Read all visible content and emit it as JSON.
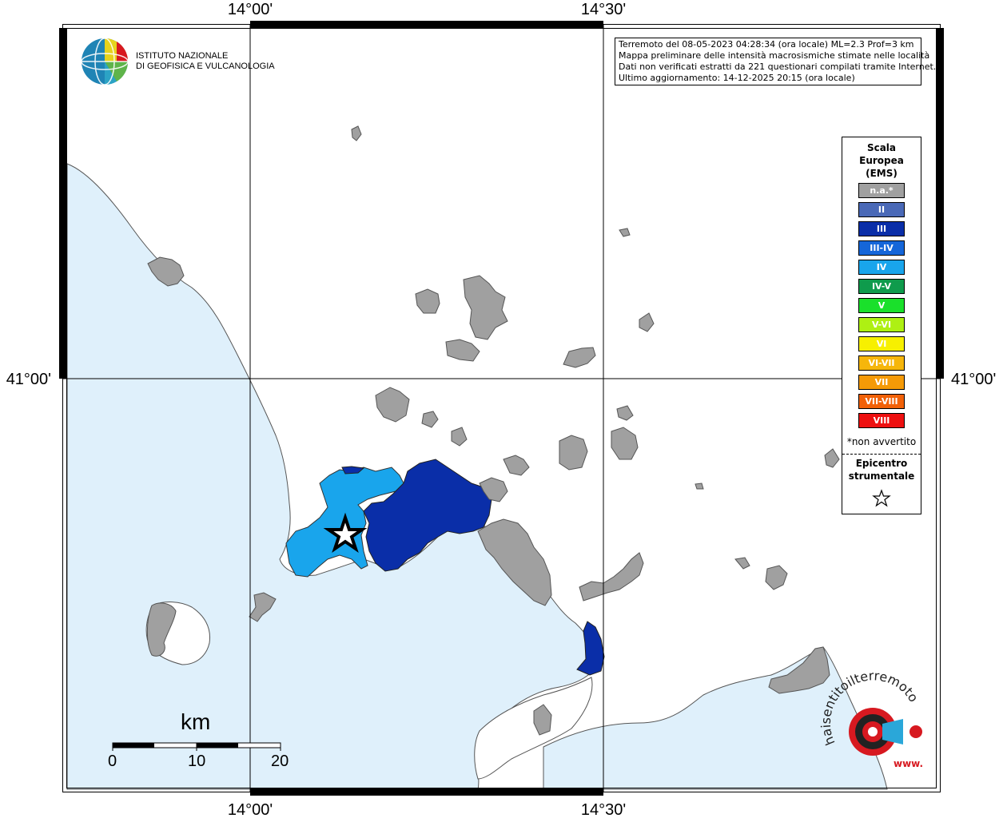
{
  "map": {
    "top_labels": [
      "14°00'",
      "14°30'"
    ],
    "bottom_labels": [
      "14°00'",
      "14°30'"
    ],
    "left_label": "41°00'",
    "right_label": "41°00'"
  },
  "logo": {
    "line1": "ISTITUTO NAZIONALE",
    "line2": "DI GEOFISICA E VULCANOLOGIA"
  },
  "info": {
    "line1": "Terremoto del 08-05-2023 04:28:34 (ora locale) ML=2.3 Prof=3 km",
    "line2": "Mappa preliminare delle intensità macrosismiche stimate nelle località",
    "line3": "Dati non verificati estratti da 221 questionari compilati tramite Internet.",
    "line4": "Ultimo aggiornamento: 14-12-2025 20:15 (ora locale)"
  },
  "legend": {
    "title": "Scala Europea (EMS)",
    "items": [
      {
        "label": "n.a.*",
        "color": "#a0a0a0"
      },
      {
        "label": "II",
        "color": "#4a69b7"
      },
      {
        "label": "III",
        "color": "#0a2ea8"
      },
      {
        "label": "III-IV",
        "color": "#1566d9"
      },
      {
        "label": "IV",
        "color": "#19a5ec"
      },
      {
        "label": "IV-V",
        "color": "#0f9b4c"
      },
      {
        "label": "V",
        "color": "#1ae02b"
      },
      {
        "label": "V-VI",
        "color": "#aef013"
      },
      {
        "label": "VI",
        "color": "#f7f000"
      },
      {
        "label": "VI-VII",
        "color": "#f6b60b"
      },
      {
        "label": "VII",
        "color": "#f59a07"
      },
      {
        "label": "VII-VIII",
        "color": "#f26108"
      },
      {
        "label": "VIII",
        "color": "#ee1010"
      }
    ],
    "note": "*non avvertito",
    "epicenter_label": "Epicentro strumentale"
  },
  "scale_bar": {
    "title": "km",
    "ticks": [
      "0",
      "10",
      "20"
    ]
  },
  "watermark": {
    "text": "haisentitoilterremoto.it",
    "url_text": "www."
  },
  "colors": {
    "sea": "#dff0fb",
    "na": "#a0a0a0",
    "intensity_iii": "#0a2ea8",
    "intensity_iv": "#19a5ec"
  }
}
